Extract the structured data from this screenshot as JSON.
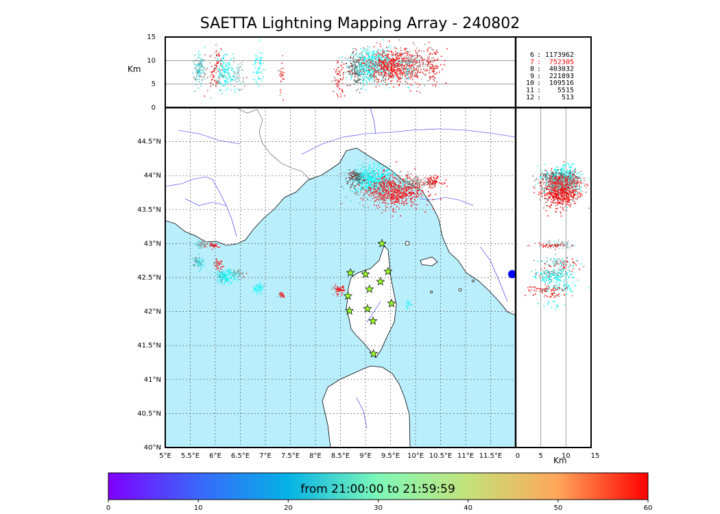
{
  "title": "SAETTA Lightning Mapping Array - 240802",
  "colors": {
    "sea": "#b9eefc",
    "land": "#ffffff",
    "river": "#2222ee",
    "border": "#444444",
    "station_fill": "#9bff2c",
    "highlight_stat": "#ff0000"
  },
  "chart_data": {
    "type": "map",
    "map": {
      "lon_range": [
        5,
        12
      ],
      "lat_range": [
        40,
        45
      ],
      "lon_ticks": [
        "5°E",
        "5.5°E",
        "6°E",
        "6.5°E",
        "7°E",
        "7.5°E",
        "8°E",
        "8.5°E",
        "9°E",
        "9.5°E",
        "10°E",
        "10.5°E",
        "11°E",
        "11.5°E"
      ],
      "lat_ticks": [
        "40°N",
        "40.5°N",
        "41°N",
        "41.5°N",
        "42°N",
        "42.5°N",
        "43°N",
        "43.5°N",
        "44°N",
        "44.5°N"
      ],
      "grid": "dotted"
    },
    "altitude_lon_panel": {
      "ylabel": "Km",
      "y_range": [
        0,
        15
      ],
      "y_ticks": [
        "0",
        "5",
        "10",
        "15"
      ]
    },
    "altitude_lat_panel": {
      "xlabel": "Km",
      "x_range": [
        0,
        15
      ],
      "x_ticks": [
        "0",
        "5",
        "10",
        "15"
      ]
    },
    "station_counts": [
      {
        "stations": "6",
        "count": "1173962",
        "highlight": false
      },
      {
        "stations": "7",
        "count": "752305",
        "highlight": true
      },
      {
        "stations": "8",
        "count": "403032",
        "highlight": false
      },
      {
        "stations": "9",
        "count": "221893",
        "highlight": false
      },
      {
        "stations": "10",
        "count": "109516",
        "highlight": false
      },
      {
        "stations": "11",
        "count": "5515",
        "highlight": false
      },
      {
        "stations": "12",
        "count": "513",
        "highlight": false
      }
    ],
    "colorbar": {
      "label": "from 21:00:00 to 21:59:59",
      "range": [
        0,
        60
      ],
      "ticks": [
        "0",
        "10",
        "20",
        "30",
        "40",
        "50",
        "60"
      ],
      "colormap": "rainbow"
    },
    "stations": [
      {
        "lon": 9.33,
        "lat": 43.0
      },
      {
        "lon": 8.7,
        "lat": 42.57
      },
      {
        "lon": 9.0,
        "lat": 42.55
      },
      {
        "lon": 9.45,
        "lat": 42.59
      },
      {
        "lon": 9.3,
        "lat": 42.44
      },
      {
        "lon": 9.08,
        "lat": 42.33
      },
      {
        "lon": 8.65,
        "lat": 42.23
      },
      {
        "lon": 9.52,
        "lat": 42.12
      },
      {
        "lon": 8.68,
        "lat": 42.01
      },
      {
        "lon": 9.04,
        "lat": 42.04
      },
      {
        "lon": 9.15,
        "lat": 41.86
      },
      {
        "lon": 9.16,
        "lat": 41.38
      }
    ],
    "clusters": [
      {
        "lon": 9.1,
        "lat": 43.94,
        "slon": 0.22,
        "slat": 0.1,
        "t": 25,
        "n": 500,
        "alt": 9
      },
      {
        "lon": 8.8,
        "lat": 43.98,
        "slon": 0.08,
        "slat": 0.05,
        "t": 8,
        "n": 120,
        "alt": 8
      },
      {
        "lon": 9.5,
        "lat": 43.78,
        "slon": 0.3,
        "slat": 0.12,
        "t": 58,
        "n": 700,
        "alt": 9
      },
      {
        "lon": 9.9,
        "lat": 43.9,
        "slon": 0.15,
        "slat": 0.05,
        "t": 48,
        "n": 150,
        "alt": 9
      },
      {
        "lon": 10.3,
        "lat": 43.92,
        "slon": 0.1,
        "slat": 0.04,
        "t": 55,
        "n": 120,
        "alt": 9
      },
      {
        "lon": 5.7,
        "lat": 42.99,
        "slon": 0.06,
        "slat": 0.03,
        "t": 45,
        "n": 60,
        "alt": 8
      },
      {
        "lon": 5.95,
        "lat": 42.98,
        "slon": 0.05,
        "slat": 0.02,
        "t": 58,
        "n": 40,
        "alt": 7
      },
      {
        "lon": 5.65,
        "lat": 42.72,
        "slon": 0.05,
        "slat": 0.05,
        "t": 16,
        "n": 60,
        "alt": 8
      },
      {
        "lon": 6.05,
        "lat": 42.7,
        "slon": 0.04,
        "slat": 0.04,
        "t": 58,
        "n": 40,
        "alt": 9
      },
      {
        "lon": 6.2,
        "lat": 42.52,
        "slon": 0.1,
        "slat": 0.05,
        "t": 24,
        "n": 140,
        "alt": 8
      },
      {
        "lon": 6.45,
        "lat": 42.57,
        "slon": 0.08,
        "slat": 0.03,
        "t": 45,
        "n": 60,
        "alt": 7
      },
      {
        "lon": 6.85,
        "lat": 42.35,
        "slon": 0.05,
        "slat": 0.04,
        "t": 33,
        "n": 60,
        "alt": 9
      },
      {
        "lon": 7.3,
        "lat": 42.24,
        "slon": 0.03,
        "slat": 0.02,
        "t": 56,
        "n": 25,
        "alt": 6
      },
      {
        "lon": 8.45,
        "lat": 42.33,
        "slon": 0.06,
        "slat": 0.03,
        "t": 58,
        "n": 60,
        "alt": 6
      },
      {
        "lon": 9.85,
        "lat": 42.1,
        "slon": 0.03,
        "slat": 0.03,
        "t": 30,
        "n": 15,
        "alt": 7
      }
    ]
  }
}
